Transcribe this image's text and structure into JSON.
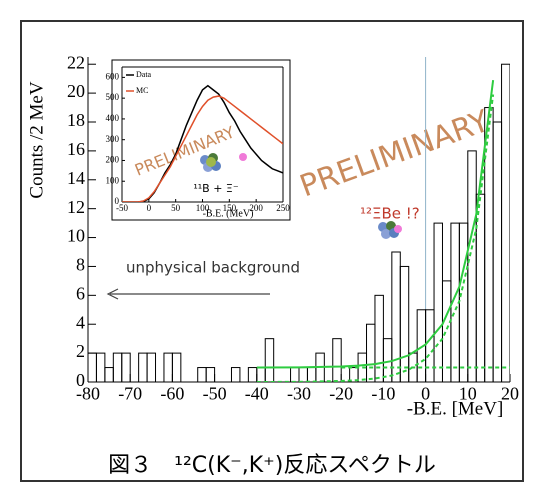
{
  "caption": "図３　¹²C(K⁻,K⁺)反応スペクトル",
  "chart_data": [
    {
      "type": "histogram",
      "xlabel": "-B.E. [MeV]",
      "ylabel": "Counts /2 MeV",
      "bins": [
        -80,
        -78,
        -76,
        -74,
        -72,
        -70,
        -68,
        -66,
        -64,
        -62,
        -60,
        -58,
        -56,
        -54,
        -52,
        -50,
        -48,
        -46,
        -44,
        -42,
        -40,
        -38,
        -36,
        -34,
        -32,
        -30,
        -28,
        -26,
        -24,
        -22,
        -20,
        -18,
        -16,
        -14,
        -12,
        -10,
        -8,
        -6,
        -4,
        -2,
        0,
        2,
        4,
        6,
        8,
        10,
        12,
        14,
        16,
        18,
        20
      ],
      "values": [
        2,
        2,
        1,
        2,
        2,
        0,
        2,
        2,
        0,
        2,
        2,
        0,
        0,
        1,
        1,
        0,
        0,
        1,
        0,
        1,
        1,
        3,
        0,
        0,
        1,
        1,
        1,
        2,
        0,
        3,
        0,
        1,
        2,
        4,
        6,
        3,
        9,
        8,
        2,
        5,
        5,
        11,
        7,
        11,
        11,
        16,
        13,
        19,
        18,
        22
      ],
      "color": "#000000",
      "xlim": [
        -80,
        20
      ],
      "xticks": [
        -80,
        -70,
        -60,
        -50,
        -40,
        -30,
        -20,
        -10,
        0,
        10,
        20
      ],
      "ylim": [
        0,
        22.5
      ],
      "yticks": [
        0,
        2,
        4,
        6,
        8,
        10,
        12,
        14,
        16,
        18,
        20,
        22
      ],
      "vline": 0,
      "fit_lines": [
        {
          "color": "#2ecc40",
          "style": "solid",
          "x": [
            -40,
            -30,
            -20,
            -16,
            -12,
            -8,
            -4,
            0,
            4,
            8,
            12,
            16
          ],
          "values": [
            1.0,
            1.01,
            1.07,
            1.13,
            1.24,
            1.45,
            1.85,
            2.6,
            4.0,
            6.6,
            11.6,
            20.9
          ]
        },
        {
          "color": "#2ecc40",
          "style": "dashed",
          "x": [
            -40,
            -30,
            -20,
            -16,
            -12,
            -8,
            -4,
            0,
            4,
            8,
            12,
            16
          ],
          "values": [
            0.0,
            0.01,
            0.07,
            0.13,
            0.24,
            0.45,
            0.85,
            1.6,
            3.0,
            5.6,
            10.6,
            19.9
          ]
        },
        {
          "color": "#2ecc40",
          "style": "dashed",
          "x": [
            -20,
            20
          ],
          "values": [
            1,
            1
          ]
        }
      ],
      "watermark": "PRELIMINARY",
      "annotations": [
        "unphysical background",
        "¹²ΞBe !?"
      ],
      "annotation_colors": [
        "#333333",
        "#c0392b"
      ]
    },
    {
      "type": "line",
      "xlabel": "-B.E. (MeV)",
      "x": [
        -50,
        -40,
        -30,
        -20,
        -10,
        0,
        10,
        20,
        30,
        40,
        50,
        60,
        70,
        80,
        90,
        100,
        110,
        120,
        130,
        140,
        150,
        160,
        170,
        180,
        190,
        200,
        210,
        220,
        230,
        240,
        250
      ],
      "series": [
        {
          "name": "Data",
          "color": "#000000",
          "values": [
            0,
            0,
            0,
            0,
            3,
            15,
            45,
            90,
            140,
            180,
            230,
            300,
            370,
            430,
            490,
            540,
            560,
            540,
            520,
            480,
            430,
            390,
            340,
            300,
            260,
            230,
            200,
            180,
            160,
            150,
            140
          ]
        },
        {
          "name": "MC",
          "color": "#e0502a",
          "values": [
            0,
            0,
            0,
            0,
            5,
            20,
            50,
            90,
            130,
            170,
            220,
            270,
            320,
            370,
            420,
            460,
            490,
            505,
            510,
            500,
            480,
            460,
            440,
            420,
            400,
            380,
            360,
            340,
            320,
            300,
            280
          ]
        }
      ],
      "xlim": [
        -50,
        250
      ],
      "xticks": [
        -50,
        0,
        50,
        100,
        150,
        200,
        250
      ],
      "ylim": [
        0,
        650
      ],
      "yticks": [
        0,
        100,
        200,
        300,
        400,
        500,
        600
      ],
      "watermark": "PRELIMINARY",
      "annotations": [
        "¹¹B + Ξ⁻"
      ],
      "annotation_colors": [
        "#000000"
      ]
    }
  ]
}
